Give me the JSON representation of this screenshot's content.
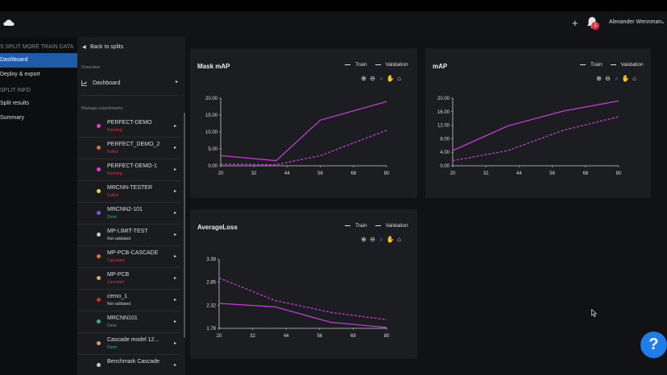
{
  "topbar": {
    "plus_label": "+",
    "badge_count": "1",
    "user_name": "Alexander Wennman",
    "user_chevron": "⌄"
  },
  "leftnav": {
    "project_header": "S SPLIT MORE TRAIN DATA",
    "items_top": [
      {
        "label": "Dashboard",
        "active": true
      },
      {
        "label": "Deploy & export",
        "active": false
      }
    ],
    "split_header": "SPLIT INFO",
    "items_split": [
      {
        "label": "Split results"
      },
      {
        "label": "Summary"
      }
    ]
  },
  "subnav": {
    "back_label": "Back to splits",
    "overview_label": "Overview",
    "dashboard_label": "Dashboard",
    "manage_label": "Manage experiments",
    "experiments": [
      {
        "name": "PERFECT-DEMO",
        "status": "Running",
        "dot": "#e040c8",
        "status_color": "#e0334a"
      },
      {
        "name": "PERFECT_DEMO_2",
        "status": "Failed",
        "dot": "#e07030",
        "status_color": "#e0334a"
      },
      {
        "name": "PERFECT-DEMO-1",
        "status": "Running",
        "dot": "#e040c8",
        "status_color": "#e0334a"
      },
      {
        "name": "MRCNN-TESTER",
        "status": "Failed",
        "dot": "#e8d050",
        "status_color": "#e0334a"
      },
      {
        "name": "MRCNN2-101",
        "status": "Done",
        "dot": "#7a5cc8",
        "status_color": "#3ab07a"
      },
      {
        "name": "MP-LIMIT-TEST",
        "status": "Not validated",
        "dot": "#cccccc",
        "status_color": "#cccccc"
      },
      {
        "name": "MP-PCB-CASCADE",
        "status": "Canceled",
        "dot": "#e07030",
        "status_color": "#e0334a"
      },
      {
        "name": "MP-PCB",
        "status": "Canceled",
        "dot": "#e8b040",
        "status_color": "#e0334a"
      },
      {
        "name": "cemo_1",
        "status": "Not validated",
        "dot": "#d03030",
        "status_color": "#cccccc"
      },
      {
        "name": "MRCNN101",
        "status": "Done",
        "dot": "#3ab07a",
        "status_color": "#3ab07a"
      },
      {
        "name": "Cascade model 12...",
        "status": "Done",
        "dot": "#c8a080",
        "status_color": "#3ab07a"
      },
      {
        "name": "Benchmark Cascade",
        "status": "",
        "dot": "#cccccc",
        "status_color": "#cccccc"
      }
    ]
  },
  "legend": {
    "train": "Train",
    "validation": "Validation"
  },
  "colors": {
    "line": "#c33bd6",
    "accent": "#1f7ce8"
  },
  "chart_data": [
    {
      "type": "line",
      "title": "Mask mAP",
      "x": [
        20,
        32,
        40,
        44,
        56,
        68,
        80
      ],
      "xticks": [
        "20",
        "32",
        "44",
        "56",
        "68",
        "80"
      ],
      "yticks": [
        "20.00",
        "15.00",
        "10.00",
        "5.00",
        "0.00"
      ],
      "ylim": [
        0,
        20
      ],
      "series": [
        {
          "name": "Train",
          "style": "solid",
          "points": [
            [
              20,
              3.0
            ],
            [
              40,
              1.5
            ],
            [
              56,
              13.5
            ],
            [
              80,
              19.0
            ]
          ]
        },
        {
          "name": "Validation",
          "style": "dashed",
          "points": [
            [
              20,
              0.5
            ],
            [
              40,
              0.3
            ],
            [
              56,
              3.0
            ],
            [
              80,
              10.5
            ]
          ]
        }
      ]
    },
    {
      "type": "line",
      "title": "mAP",
      "xticks": [
        "20",
        "32",
        "44",
        "56",
        "68",
        "80"
      ],
      "yticks": [
        "20.00",
        "16.00",
        "12.00",
        "8.00",
        "4.00",
        "0.00"
      ],
      "ylim": [
        0,
        20
      ],
      "series": [
        {
          "name": "Train",
          "style": "solid",
          "points": [
            [
              20,
              4.5
            ],
            [
              40,
              11.8
            ],
            [
              60,
              16.2
            ],
            [
              80,
              19.2
            ]
          ]
        },
        {
          "name": "Validation",
          "style": "dashed",
          "points": [
            [
              20,
              1.5
            ],
            [
              40,
              4.5
            ],
            [
              60,
              10.5
            ],
            [
              80,
              14.5
            ]
          ]
        }
      ]
    },
    {
      "type": "line",
      "title": "AverageLoss",
      "xticks": [
        "20",
        "32",
        "44",
        "56",
        "68",
        "80"
      ],
      "yticks": [
        "3.39",
        "2.85",
        "2.32",
        "1.78"
      ],
      "ylim": [
        1.78,
        3.39
      ],
      "series": [
        {
          "name": "Train",
          "style": "solid",
          "points": [
            [
              20,
              2.36
            ],
            [
              40,
              2.28
            ],
            [
              60,
              1.92
            ],
            [
              80,
              1.8
            ]
          ]
        },
        {
          "name": "Validation",
          "style": "dashed",
          "points": [
            [
              20,
              2.95
            ],
            [
              40,
              2.43
            ],
            [
              60,
              2.15
            ],
            [
              80,
              1.98
            ]
          ]
        }
      ]
    }
  ],
  "help_label": "?"
}
